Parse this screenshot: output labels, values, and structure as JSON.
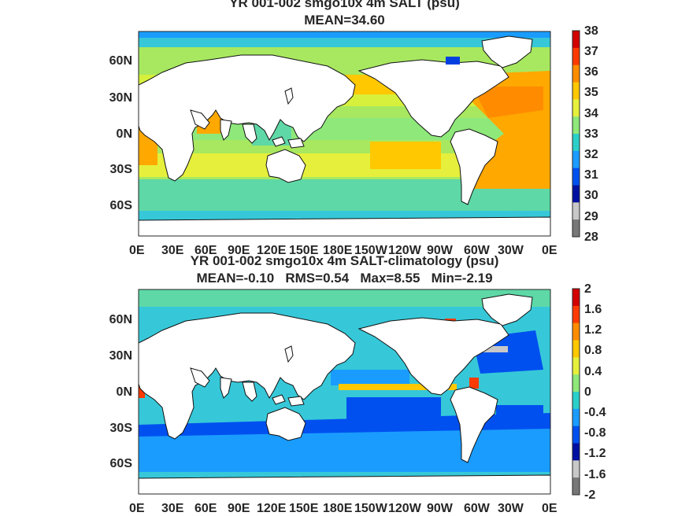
{
  "panels": [
    {
      "title_line1": "YR 001-002 smgo10x 4m SALT (psu)",
      "title_line2": "MEAN=34.60",
      "y_ticks": [
        "60N",
        "30N",
        "0N",
        "30S",
        "60S"
      ],
      "x_ticks": [
        "0E",
        "30E",
        "60E",
        "90E",
        "120E",
        "150E",
        "180E",
        "150W",
        "120W",
        "90W",
        "60W",
        "30W",
        "0E"
      ],
      "colorbar_ticks": [
        "38",
        "37",
        "36",
        "35",
        "34",
        "33",
        "32",
        "31",
        "30",
        "29",
        "28"
      ],
      "colorbar_colors": [
        "#d40000",
        "#ff3a00",
        "#ff8c00",
        "#ffc800",
        "#e6f03c",
        "#8ee87a",
        "#2ad0c8",
        "#1a9cff",
        "#0050f0",
        "#0010a0",
        "#c8c8c8",
        "#777777"
      ]
    },
    {
      "title_line1": "YR 001-002 smgo10x 4m SALT-climatology (psu)",
      "title_line2": "MEAN=-0.10   RMS=0.54   Max=8.55   Min=-2.19",
      "y_ticks": [
        "60N",
        "30N",
        "0N",
        "30S",
        "60S"
      ],
      "x_ticks": [
        "0E",
        "30E",
        "60E",
        "90E",
        "120E",
        "150E",
        "180E",
        "150W",
        "120W",
        "90W",
        "60W",
        "30W",
        "0E"
      ],
      "colorbar_ticks": [
        "2",
        "1.6",
        "1.2",
        "0.8",
        "0.4",
        "0",
        "-0.4",
        "-0.8",
        "-1.2",
        "-1.6",
        "-2"
      ],
      "colorbar_colors": [
        "#d40000",
        "#ff3a00",
        "#ff8c00",
        "#ffc800",
        "#e6f03c",
        "#8ee87a",
        "#2ad0c8",
        "#1a9cff",
        "#0050f0",
        "#0010a0",
        "#c8c8c8",
        "#777777"
      ]
    }
  ]
}
